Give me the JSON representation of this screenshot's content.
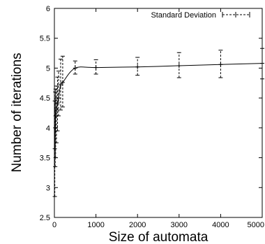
{
  "chart_data": {
    "type": "line",
    "title": "",
    "xlabel": "Size of automata",
    "ylabel": "Number of iterations",
    "xlim": [
      0,
      5000
    ],
    "ylim": [
      2.5,
      6
    ],
    "x_ticks": [
      0,
      1000,
      2000,
      3000,
      4000,
      5000
    ],
    "x_tick_labels": [
      "0",
      "1000",
      "2000",
      "3000",
      "4000",
      "5000"
    ],
    "y_ticks": [
      2.5,
      3,
      3.5,
      4,
      4.5,
      5,
      5.5,
      6
    ],
    "y_tick_labels": [
      "2.5",
      "3",
      "3.5",
      "4",
      "4.5",
      "5",
      "5.5",
      "6"
    ],
    "grid": false,
    "legend": {
      "position": "top-right",
      "entries": [
        "Standard Deviation"
      ]
    },
    "series": [
      {
        "name": "Standard Deviation",
        "x": [
          10,
          20,
          30,
          50,
          75,
          100,
          150,
          200,
          500,
          1000,
          2000,
          3000,
          4000,
          5000
        ],
        "y": [
          3.65,
          4.0,
          4.2,
          4.3,
          4.42,
          4.5,
          4.72,
          4.76,
          5.0,
          5.01,
          5.02,
          5.04,
          5.06,
          5.08
        ],
        "err_low": [
          2.85,
          3.35,
          3.5,
          3.75,
          3.95,
          4.2,
          4.3,
          4.35,
          4.9,
          4.9,
          4.88,
          4.84,
          4.84,
          4.82
        ],
        "err_high": [
          4.45,
          4.6,
          4.65,
          4.7,
          4.85,
          4.95,
          5.15,
          5.2,
          5.12,
          5.14,
          5.18,
          5.26,
          5.3,
          5.33
        ]
      }
    ]
  }
}
